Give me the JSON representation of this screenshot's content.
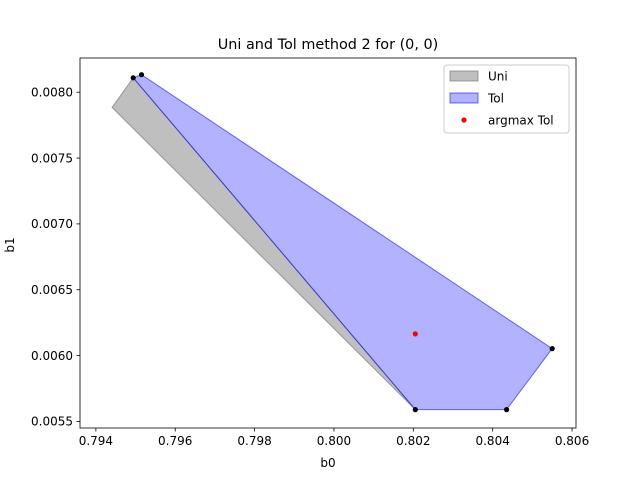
{
  "chart_data": {
    "type": "area",
    "title": "Uni and Tol method 2 for (0, 0)",
    "xlabel": "b0",
    "ylabel": "b1",
    "xlim": [
      0.7936,
      0.8061
    ],
    "ylim": [
      0.00545,
      0.00826
    ],
    "xticks": [
      0.794,
      0.796,
      0.798,
      0.8,
      0.802,
      0.804,
      0.806
    ],
    "xtick_labels": [
      "0.794",
      "0.796",
      "0.798",
      "0.800",
      "0.802",
      "0.804",
      "0.806"
    ],
    "yticks": [
      0.0055,
      0.006,
      0.0065,
      0.007,
      0.0075,
      0.008
    ],
    "ytick_labels": [
      "0.0055",
      "0.0060",
      "0.0065",
      "0.0070",
      "0.0075",
      "0.0080"
    ],
    "grid": false,
    "legend_position": "upper-right",
    "series": [
      {
        "name": "Uni",
        "kind": "polygon",
        "color": "#808080",
        "alpha": 0.5,
        "points": [
          [
            0.79441,
            0.007885
          ],
          [
            0.79494,
            0.00811
          ],
          [
            0.80205,
            0.00559
          ],
          [
            0.80205,
            0.00559
          ]
        ]
      },
      {
        "name": "Tol",
        "kind": "polygon",
        "color": "#0000ff",
        "alpha": 0.3,
        "points": [
          [
            0.79494,
            0.00811
          ],
          [
            0.79515,
            0.008133
          ],
          [
            0.8055,
            0.006053
          ],
          [
            0.80435,
            0.00559
          ],
          [
            0.80205,
            0.00559
          ]
        ]
      },
      {
        "name": "argmax Tol",
        "kind": "point",
        "color": "#ff0000",
        "points": [
          [
            0.80205,
            0.006165
          ]
        ]
      }
    ],
    "vertices": [
      [
        0.79494,
        0.00811
      ],
      [
        0.79515,
        0.008133
      ],
      [
        0.8055,
        0.006053
      ],
      [
        0.80435,
        0.00559
      ],
      [
        0.80205,
        0.00559
      ]
    ]
  }
}
